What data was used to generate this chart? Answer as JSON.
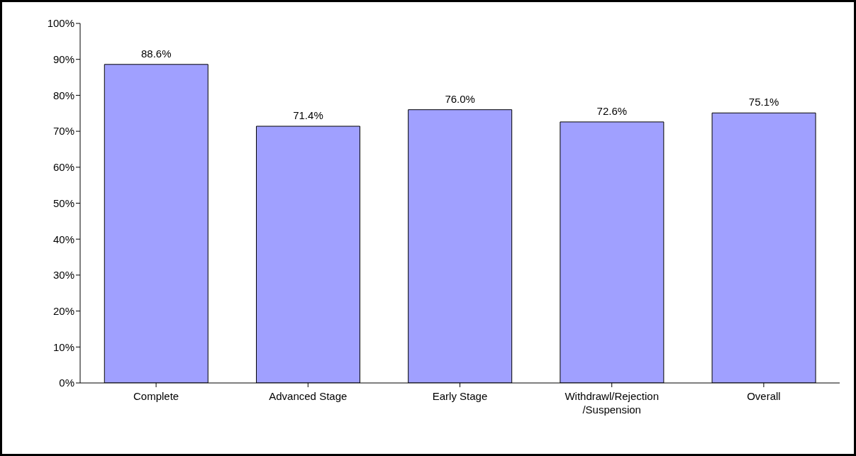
{
  "chart_data": {
    "type": "bar",
    "categories": [
      "Complete",
      "Advanced Stage",
      "Early Stage",
      "Withdrawl/Rejection/Suspension",
      "Overall"
    ],
    "values": [
      88.6,
      71.4,
      76.0,
      72.6,
      75.1
    ],
    "value_labels": [
      "88.6%",
      "71.4%",
      "76.0%",
      "72.6%",
      "75.1%"
    ],
    "color": "#a0a0ff",
    "ylim": [
      0,
      100
    ],
    "yticks": [
      {
        "value": 0,
        "label": "0%"
      },
      {
        "value": 10,
        "label": "10%"
      },
      {
        "value": 20,
        "label": "20%"
      },
      {
        "value": 30,
        "label": "30%"
      },
      {
        "value": 40,
        "label": "40%"
      },
      {
        "value": 50,
        "label": "50%"
      },
      {
        "value": 60,
        "label": "60%"
      },
      {
        "value": 70,
        "label": "70%"
      },
      {
        "value": 80,
        "label": "80%"
      },
      {
        "value": 90,
        "label": "90%"
      },
      {
        "value": 100,
        "label": "100%"
      }
    ],
    "grid": false
  }
}
